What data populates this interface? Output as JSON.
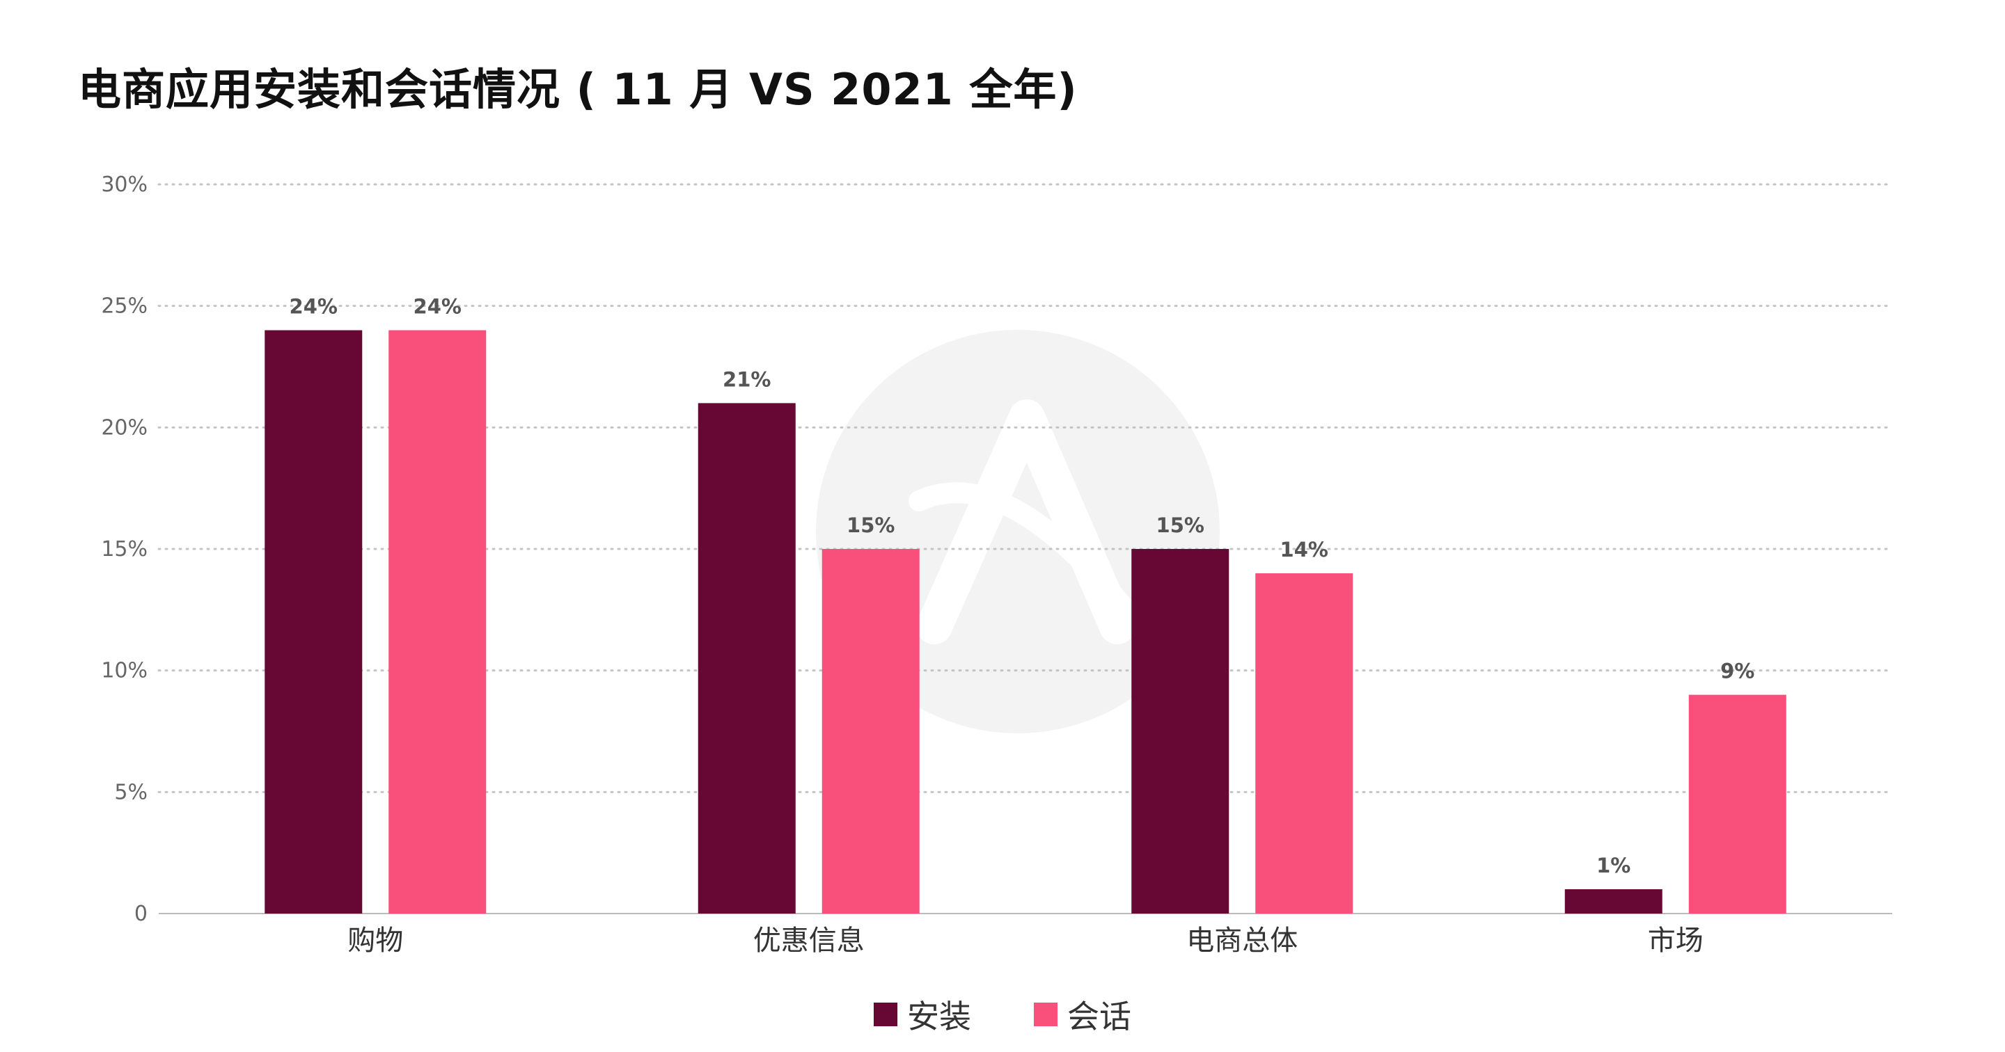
{
  "chart_data": {
    "type": "bar",
    "title": "电商应用安装和会话情况 ( 11 月 VS 2021 全年)",
    "categories": [
      "购物",
      "优惠信息",
      "电商总体",
      "市场"
    ],
    "series": [
      {
        "name": "安装",
        "color": "#660833",
        "values": [
          24,
          21,
          15,
          1
        ],
        "labels": [
          "24%",
          "21%",
          "15%",
          "1%"
        ]
      },
      {
        "name": "会话",
        "color": "#F9507B",
        "values": [
          24,
          15,
          14,
          9
        ],
        "labels": [
          "24%",
          "15%",
          "14%",
          "9%"
        ]
      }
    ],
    "ylim": [
      0,
      30
    ],
    "yticks": [
      0,
      5,
      10,
      15,
      20,
      25,
      30
    ],
    "ytick_labels": [
      "0",
      "5%",
      "10%",
      "15%",
      "20%",
      "25%",
      "30%"
    ],
    "grid": true,
    "legend_position": "bottom-center"
  }
}
